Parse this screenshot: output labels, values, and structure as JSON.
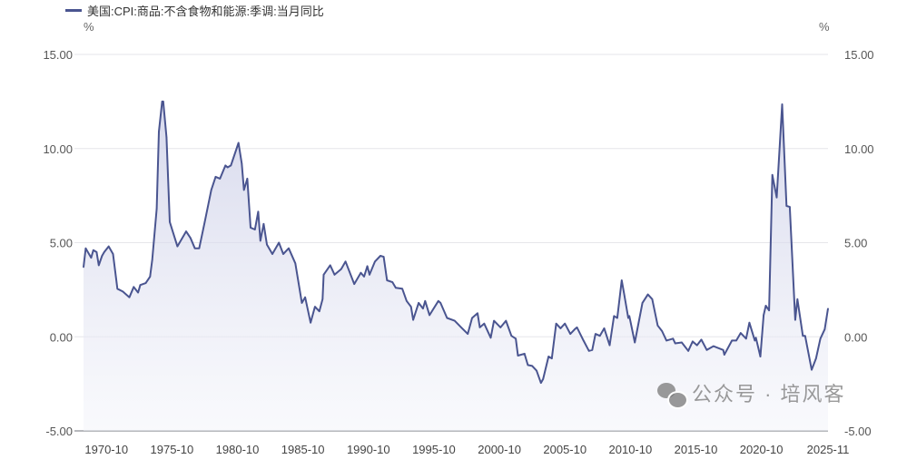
{
  "legend": {
    "label": "美国:CPI:商品:不含食物和能源:季调:当月同比",
    "color": "#4a5590"
  },
  "units": {
    "left": "%",
    "right": "%"
  },
  "watermark": {
    "text": "公众号 · 培风客",
    "icon": "wechat-icon"
  },
  "chart_data": {
    "type": "area",
    "title": "",
    "xlabel": "",
    "ylabel": "%",
    "ylim": [
      -5,
      15
    ],
    "yticks": [
      "15.00",
      "10.00",
      "5.00",
      "0.00",
      "-5.00"
    ],
    "ytick_values": [
      15,
      10,
      5,
      0,
      -5
    ],
    "xticks": [
      "1970-10",
      "1975-10",
      "1980-10",
      "1985-10",
      "1990-10",
      "1995-10",
      "2000-10",
      "2005-10",
      "2010-10",
      "2015-10",
      "2020-10",
      "2025-11"
    ],
    "grid": true,
    "dual_y_axis": true,
    "legend_position": "top-left",
    "series": [
      {
        "name": "美国:CPI:商品:不含食物和能源:季调:当月同比",
        "color": "#4a5590",
        "points": [
          [
            "1969-01",
            3.7
          ],
          [
            "1969-03",
            4.7
          ],
          [
            "1969-08",
            4.2
          ],
          [
            "1969-10",
            4.6
          ],
          [
            "1970-01",
            4.5
          ],
          [
            "1970-03",
            3.8
          ],
          [
            "1970-06",
            4.3
          ],
          [
            "1970-08",
            4.5
          ],
          [
            "1970-12",
            4.8
          ],
          [
            "1971-04",
            4.4
          ],
          [
            "1971-08",
            2.55
          ],
          [
            "1972-01",
            2.4
          ],
          [
            "1972-07",
            2.1
          ],
          [
            "1972-11",
            2.65
          ],
          [
            "1973-03",
            2.35
          ],
          [
            "1973-05",
            2.75
          ],
          [
            "1973-10",
            2.85
          ],
          [
            "1974-02",
            3.2
          ],
          [
            "1974-04",
            4.1
          ],
          [
            "1974-08",
            6.8
          ],
          [
            "1974-10",
            10.9
          ],
          [
            "1975-01",
            12.5
          ],
          [
            "1975-02",
            12.5
          ],
          [
            "1975-05",
            10.6
          ],
          [
            "1975-08",
            6.1
          ],
          [
            "1976-03",
            4.8
          ],
          [
            "1976-07",
            5.2
          ],
          [
            "1976-11",
            5.6
          ],
          [
            "1977-03",
            5.25
          ],
          [
            "1977-07",
            4.7
          ],
          [
            "1977-11",
            4.7
          ],
          [
            "1978-04",
            6.1
          ],
          [
            "1978-10",
            7.8
          ],
          [
            "1979-02",
            8.5
          ],
          [
            "1979-06",
            8.4
          ],
          [
            "1979-11",
            9.1
          ],
          [
            "1980-01",
            9.0
          ],
          [
            "1980-04",
            9.1
          ],
          [
            "1980-11",
            10.3
          ],
          [
            "1981-02",
            9.2
          ],
          [
            "1981-04",
            7.8
          ],
          [
            "1981-07",
            8.4
          ],
          [
            "1981-10",
            5.8
          ],
          [
            "1982-02",
            5.7
          ],
          [
            "1982-05",
            6.65
          ],
          [
            "1982-07",
            5.1
          ],
          [
            "1982-10",
            6.0
          ],
          [
            "1983-01",
            4.9
          ],
          [
            "1983-06",
            4.4
          ],
          [
            "1983-12",
            5.0
          ],
          [
            "1984-04",
            4.4
          ],
          [
            "1984-09",
            4.7
          ],
          [
            "1985-03",
            3.9
          ],
          [
            "1985-09",
            1.8
          ],
          [
            "1985-12",
            2.1
          ],
          [
            "1986-05",
            0.75
          ],
          [
            "1986-09",
            1.6
          ],
          [
            "1987-01",
            1.35
          ],
          [
            "1987-04",
            2.0
          ],
          [
            "1987-05",
            3.3
          ],
          [
            "1987-11",
            3.8
          ],
          [
            "1988-03",
            3.3
          ],
          [
            "1988-09",
            3.6
          ],
          [
            "1989-01",
            4.0
          ],
          [
            "1989-09",
            2.8
          ],
          [
            "1990-03",
            3.4
          ],
          [
            "1990-06",
            3.2
          ],
          [
            "1990-09",
            3.75
          ],
          [
            "1990-11",
            3.3
          ],
          [
            "1991-04",
            4.0
          ],
          [
            "1991-09",
            4.3
          ],
          [
            "1991-12",
            4.25
          ],
          [
            "1992-03",
            3.0
          ],
          [
            "1992-08",
            2.9
          ],
          [
            "1992-11",
            2.6
          ],
          [
            "1993-05",
            2.55
          ],
          [
            "1993-09",
            1.9
          ],
          [
            "1994-01",
            1.6
          ],
          [
            "1994-03",
            0.9
          ],
          [
            "1994-08",
            1.8
          ],
          [
            "1994-12",
            1.5
          ],
          [
            "1995-02",
            1.9
          ],
          [
            "1995-06",
            1.15
          ],
          [
            "1996-02",
            1.9
          ],
          [
            "1996-04",
            1.8
          ],
          [
            "1996-10",
            1.0
          ],
          [
            "1997-05",
            0.85
          ],
          [
            "1997-11",
            0.5
          ],
          [
            "1998-05",
            0.15
          ],
          [
            "1998-09",
            1.0
          ],
          [
            "1999-02",
            1.25
          ],
          [
            "1999-04",
            0.5
          ],
          [
            "1999-08",
            0.7
          ],
          [
            "2000-02",
            -0.05
          ],
          [
            "2000-05",
            0.85
          ],
          [
            "2000-11",
            0.5
          ],
          [
            "2001-04",
            0.85
          ],
          [
            "2001-09",
            0.05
          ],
          [
            "2002-01",
            -0.1
          ],
          [
            "2002-03",
            -1.0
          ],
          [
            "2002-09",
            -0.9
          ],
          [
            "2002-12",
            -1.5
          ],
          [
            "2003-04",
            -1.55
          ],
          [
            "2003-08",
            -1.8
          ],
          [
            "2003-12",
            -2.45
          ],
          [
            "2004-02",
            -2.25
          ],
          [
            "2004-07",
            -1.05
          ],
          [
            "2004-10",
            -1.15
          ],
          [
            "2005-02",
            0.7
          ],
          [
            "2005-06",
            0.45
          ],
          [
            "2005-10",
            0.7
          ],
          [
            "2006-03",
            0.15
          ],
          [
            "2006-07",
            0.4
          ],
          [
            "2006-09",
            0.5
          ],
          [
            "2007-03",
            -0.2
          ],
          [
            "2007-08",
            -0.75
          ],
          [
            "2007-11",
            -0.7
          ],
          [
            "2008-02",
            0.15
          ],
          [
            "2008-06",
            0.05
          ],
          [
            "2008-10",
            0.45
          ],
          [
            "2009-03",
            -0.45
          ],
          [
            "2009-07",
            1.1
          ],
          [
            "2009-10",
            1.0
          ],
          [
            "2010-02",
            3.0
          ],
          [
            "2010-04",
            2.35
          ],
          [
            "2010-08",
            1.0
          ],
          [
            "2010-09",
            1.1
          ],
          [
            "2011-02",
            -0.3
          ],
          [
            "2011-09",
            1.8
          ],
          [
            "2012-02",
            2.25
          ],
          [
            "2012-06",
            2.0
          ],
          [
            "2012-11",
            0.6
          ],
          [
            "2013-03",
            0.3
          ],
          [
            "2013-07",
            -0.2
          ],
          [
            "2014-01",
            -0.1
          ],
          [
            "2014-03",
            -0.35
          ],
          [
            "2014-09",
            -0.3
          ],
          [
            "2015-03",
            -0.75
          ],
          [
            "2015-07",
            -0.25
          ],
          [
            "2015-11",
            -0.45
          ],
          [
            "2016-03",
            -0.15
          ],
          [
            "2016-08",
            -0.7
          ],
          [
            "2017-02",
            -0.5
          ],
          [
            "2017-11",
            -0.7
          ],
          [
            "2017-12",
            -0.95
          ],
          [
            "2018-07",
            -0.2
          ],
          [
            "2018-11",
            -0.2
          ],
          [
            "2019-03",
            0.2
          ],
          [
            "2019-08",
            -0.1
          ],
          [
            "2019-11",
            0.75
          ],
          [
            "2020-04",
            -0.2
          ],
          [
            "2020-05",
            -0.05
          ],
          [
            "2020-09",
            -1.05
          ],
          [
            "2020-12",
            1.15
          ],
          [
            "2021-02",
            1.65
          ],
          [
            "2021-05",
            1.4
          ],
          [
            "2021-08",
            8.6
          ],
          [
            "2021-12",
            7.4
          ],
          [
            "2022-05",
            12.35
          ],
          [
            "2022-09",
            6.95
          ],
          [
            "2022-12",
            6.9
          ],
          [
            "2023-05",
            0.9
          ],
          [
            "2023-07",
            2.0
          ],
          [
            "2023-12",
            0.05
          ],
          [
            "2024-02",
            0.05
          ],
          [
            "2024-08",
            -1.75
          ],
          [
            "2024-12",
            -1.15
          ],
          [
            "2025-04",
            -0.1
          ],
          [
            "2025-08",
            0.4
          ],
          [
            "2025-11",
            1.5
          ]
        ]
      }
    ]
  }
}
